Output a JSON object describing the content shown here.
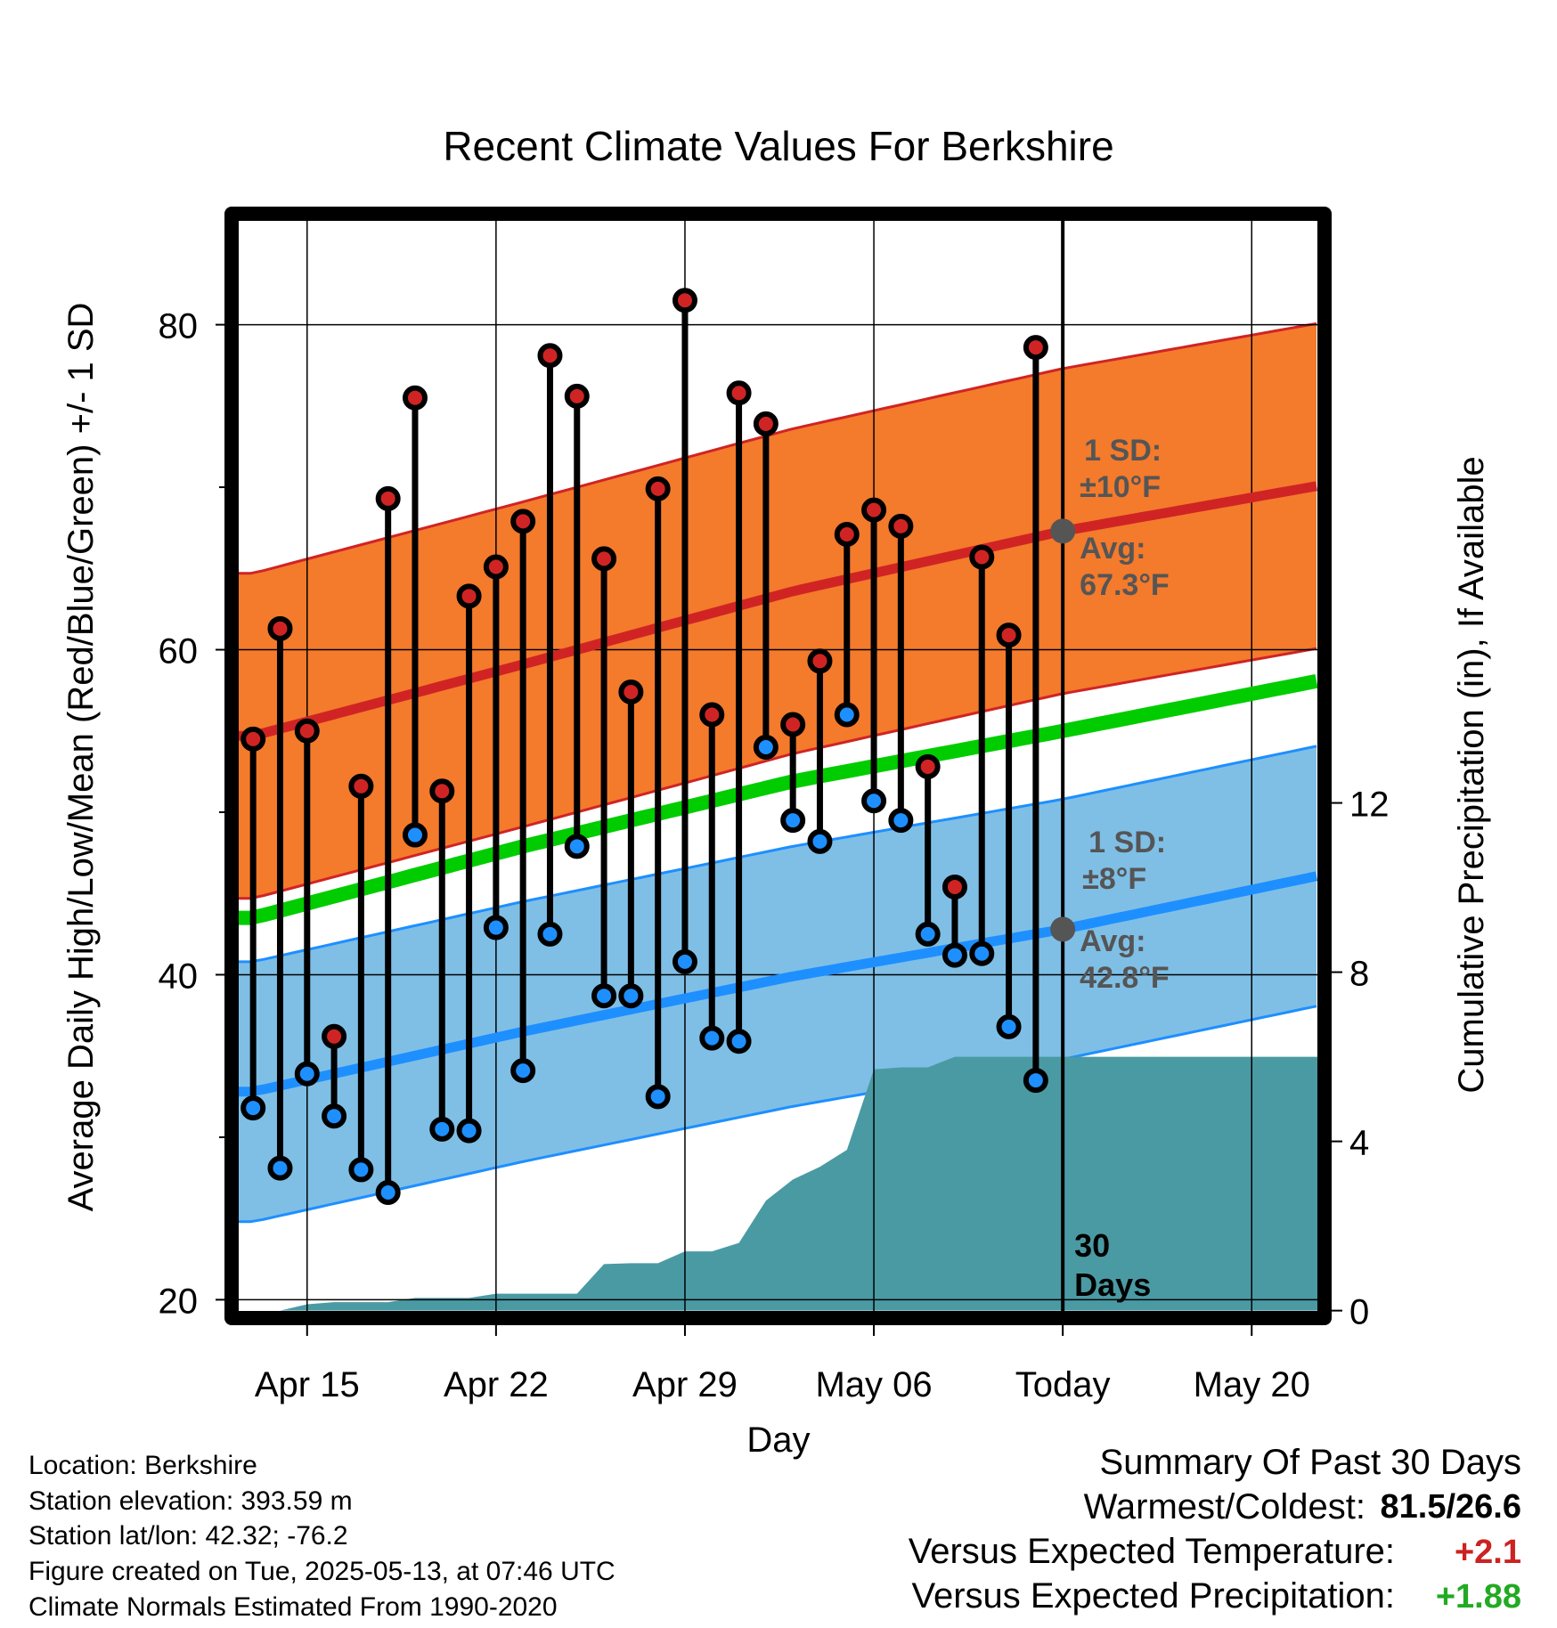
{
  "chart_data": {
    "type": "line",
    "title": "Recent Climate Values For Berkshire",
    "xlabel": "Day",
    "ylabel": "Average Daily High/Low/Mean (Red/Blue/Green) +/- 1 SD",
    "y2label": "Cumulative Precipitation (in), If Available",
    "ylim": [
      19.2,
      86.5
    ],
    "y2lim": [
      -0.05,
      25.8
    ],
    "x_tick_labels": [
      "Apr 15",
      "Apr 22",
      "Apr 29",
      "May 06",
      "Today",
      "May 20"
    ],
    "x_tick_days": [
      2,
      9,
      16,
      23,
      30,
      37
    ],
    "xlim": [
      -0.6,
      39.5
    ],
    "y_ticks": [
      20,
      40,
      60,
      80
    ],
    "y_minor_ticks": [
      30,
      50,
      70
    ],
    "y2_ticks": [
      0,
      4,
      8,
      12
    ],
    "today_day": 30,
    "today_label": [
      "30",
      "Days"
    ],
    "grid": true,
    "colors": {
      "high_band": "#f47a2c",
      "high_line": "#d02424",
      "low_band": "#7fbfe6",
      "low_line": "#1e8fff",
      "mean_line": "#00cc00",
      "precip": "#4a9aa4",
      "high_marker": "#d02424",
      "low_marker": "#1e8fff",
      "annotation": "#555555"
    },
    "normals": {
      "days": [
        0,
        10,
        20,
        30,
        39.5
      ],
      "avg_high": [
        54.7,
        59.1,
        63.6,
        67.3,
        70.1
      ],
      "high_sd": 10,
      "avg_low": [
        32.8,
        36.5,
        39.9,
        42.8,
        46.1
      ],
      "low_sd": 8,
      "mean": [
        43.5,
        47.9,
        51.9,
        55.0,
        58.1
      ]
    },
    "series": [
      {
        "name": "High",
        "x": [
          0,
          1,
          2,
          3,
          4,
          5,
          6,
          7,
          8,
          9,
          10,
          11,
          12,
          13,
          14,
          15,
          16,
          17,
          18,
          19,
          20,
          21,
          22,
          23,
          24,
          25,
          26,
          27,
          28,
          29
        ],
        "values": [
          54.5,
          61.3,
          55.0,
          36.2,
          51.6,
          69.3,
          75.5,
          51.3,
          63.3,
          65.1,
          67.9,
          78.1,
          75.6,
          65.6,
          57.4,
          69.9,
          81.5,
          56.0,
          75.8,
          73.9,
          55.4,
          59.3,
          67.1,
          68.6,
          67.6,
          52.8,
          45.4,
          65.7,
          60.9,
          78.6
        ]
      },
      {
        "name": "Low",
        "x": [
          0,
          1,
          2,
          3,
          4,
          5,
          6,
          7,
          8,
          9,
          10,
          11,
          12,
          13,
          14,
          15,
          16,
          17,
          18,
          19,
          20,
          21,
          22,
          23,
          24,
          25,
          26,
          27,
          28,
          29
        ],
        "values": [
          31.8,
          28.1,
          33.9,
          31.3,
          28.0,
          26.6,
          48.6,
          30.5,
          30.4,
          42.9,
          34.1,
          42.5,
          47.9,
          38.7,
          38.7,
          32.5,
          40.8,
          36.1,
          35.9,
          54.0,
          49.5,
          48.2,
          56.0,
          50.7,
          49.5,
          42.5,
          41.2,
          41.3,
          36.8,
          33.5
        ]
      },
      {
        "name": "Cumulative Precipitation",
        "x": [
          0,
          1,
          2,
          3,
          4,
          5,
          6,
          7,
          8,
          9,
          10,
          11,
          12,
          13,
          14,
          15,
          16,
          17,
          18,
          19,
          20,
          21,
          22,
          23,
          24,
          25,
          26,
          27,
          28,
          29,
          30,
          39.5
        ],
        "values": [
          0,
          0,
          0.15,
          0.2,
          0.2,
          0.2,
          0.3,
          0.3,
          0.3,
          0.4,
          0.4,
          0.4,
          0.4,
          1.1,
          1.12,
          1.12,
          1.4,
          1.4,
          1.6,
          2.6,
          3.1,
          3.4,
          3.8,
          5.7,
          5.75,
          5.75,
          6.0,
          6.0,
          6.0,
          6.0,
          6.0,
          6.0
        ]
      }
    ],
    "annotations": {
      "high": {
        "sd_line1": "1 SD:",
        "sd_line2": "±10°F",
        "avg_line1": "Avg:",
        "avg_line2": "67.3°F",
        "avg": 67.3
      },
      "low": {
        "sd_line1": "1 SD:",
        "sd_line2": "±8°F",
        "avg_line1": "Avg:",
        "avg_line2": "42.8°F",
        "avg": 42.8
      }
    }
  },
  "footer": {
    "location": "Location: Berkshire",
    "elevation": "Station elevation: 393.59 m",
    "latlon": "Station lat/lon: 42.32; -76.2",
    "created": "Figure created on Tue, 2025-05-13, at 07:46 UTC",
    "normals": "Climate Normals Estimated From 1990-2020"
  },
  "summary": {
    "title": "Summary Of Past 30 Days",
    "warm_cold_label": "Warmest/Coldest:",
    "warm_cold_value": "81.5/26.6",
    "temp_label": "Versus Expected Temperature:",
    "temp_value": "+2.1",
    "temp_color": "#cc2222",
    "precip_label": "Versus Expected Precipitation:",
    "precip_value": "+1.88",
    "precip_color": "#22aa22"
  }
}
